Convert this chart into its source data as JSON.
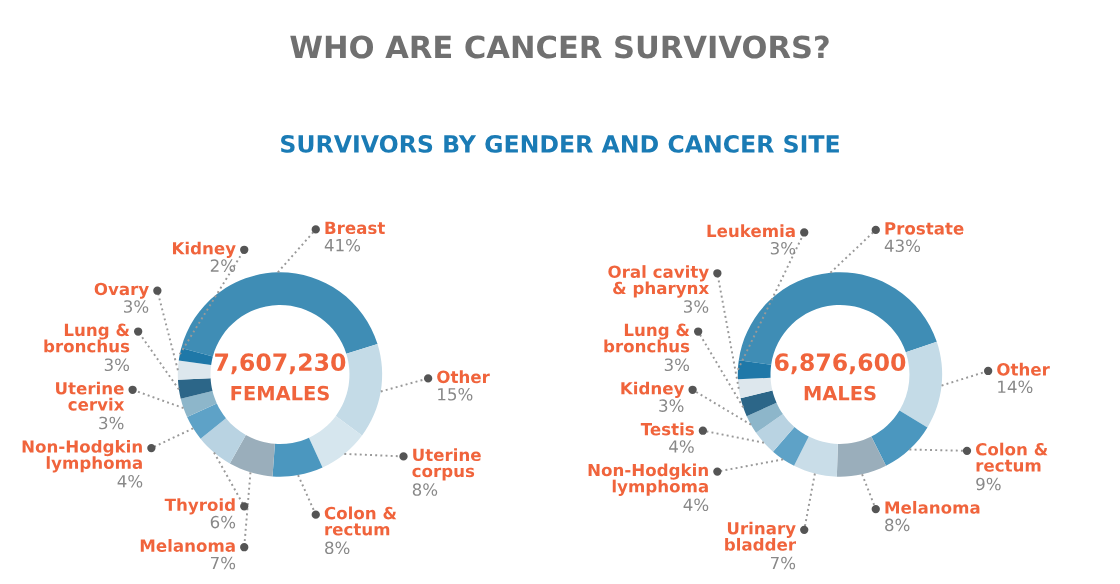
{
  "chart_data": [
    {
      "type": "donut",
      "title": "WHO ARE CANCER SURVIVORS?",
      "subtitle": "SURVIVORS BY GENDER AND CANCER SITE",
      "annotations": [
        "7,607,230",
        "FEMALES"
      ],
      "categories": [
        "Breast",
        "Other",
        "Uterine corpus",
        "Colon & rectum",
        "Melanoma",
        "Thyroid",
        "Non-Hodgkin lymphoma",
        "Uterine cervix",
        "Lung & bronchus",
        "Ovary",
        "Kidney"
      ],
      "values": [
        41,
        15,
        8,
        8,
        7,
        6,
        4,
        3,
        3,
        3,
        2
      ],
      "value_labels": [
        "41%",
        "15%",
        "8%",
        "8%",
        "7%",
        "6%",
        "4%",
        "3%",
        "3%",
        "3%",
        "2%"
      ],
      "colors": [
        "#3f8db5",
        "#c4dbe7",
        "#d6e6ee",
        "#4b97bf",
        "#9aaebb",
        "#b9d3e2",
        "#5ea2c7",
        "#8db6ca",
        "#2c6688",
        "#dde7ed",
        "#1f78a8"
      ]
    },
    {
      "type": "donut",
      "annotations": [
        "6,876,600",
        "MALES"
      ],
      "categories": [
        "Prostate",
        "Other",
        "Colon & rectum",
        "Melanoma",
        "Urinary bladder",
        "Non-Hodgkin lymphoma",
        "Testis",
        "Kidney",
        "Lung & bronchus",
        "Oral cavity & pharynx",
        "Leukemia"
      ],
      "values": [
        43,
        14,
        9,
        8,
        7,
        4,
        4,
        3,
        3,
        3,
        3
      ],
      "value_labels": [
        "43%",
        "14%",
        "9%",
        "8%",
        "7%",
        "4%",
        "4%",
        "3%",
        "3%",
        "3%",
        "3%"
      ],
      "colors": [
        "#3f8db5",
        "#c4dbe7",
        "#4b97bf",
        "#9aaebb",
        "#c9dde8",
        "#5ea2c7",
        "#b9d3e2",
        "#8db6ca",
        "#2c6688",
        "#dde7ed",
        "#1f78a8"
      ]
    }
  ]
}
